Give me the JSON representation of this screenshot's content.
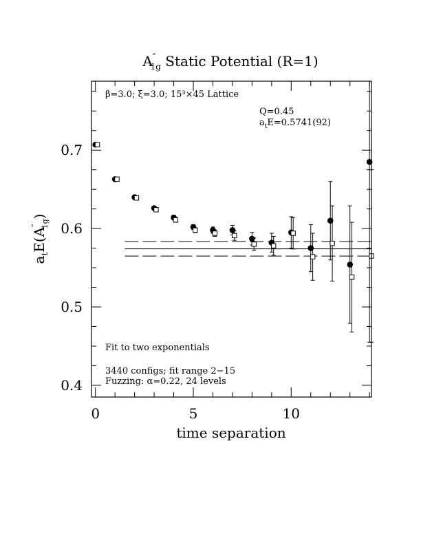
{
  "chart_data": {
    "type": "scatter",
    "title": {
      "main": "A",
      "sup": "″",
      "sub": "1g",
      "rest": " Static Potential (R=1)"
    },
    "xlabel": "time separation",
    "ylabel": {
      "pre": "a",
      "pre_sub": "t",
      "mid": "E(A",
      "sup": "″",
      "sub": "1g",
      "post": ")"
    },
    "xlim": [
      -0.2,
      14.1
    ],
    "ylim": [
      0.385,
      0.788
    ],
    "x_ticks": [
      0,
      5,
      10
    ],
    "x_tick_labels": [
      "0",
      "5",
      "10"
    ],
    "y_ticks": [
      0.4,
      0.5,
      0.6,
      0.7
    ],
    "y_tick_labels": [
      "0.4",
      "0.5",
      "0.6",
      "0.7"
    ],
    "grid": false,
    "annotations": {
      "lattice": "β=3.0; ξ=3.0; 15³×45 Lattice",
      "q_value": "Q=0.45",
      "energy": {
        "pre": "a",
        "sub": "t",
        "post": "E=0.5741(92)"
      },
      "fit_desc": "Fit to two exponentials",
      "configs": "3440 configs; fit range 2−15",
      "fuzzing": "Fuzzing: α=0.22, 24 levels"
    },
    "fit": {
      "value": 0.5741,
      "error": 0.0092,
      "x_range": [
        1.5,
        14.1
      ]
    },
    "series": [
      {
        "marker": "filled-circle",
        "x": [
          0,
          1,
          2,
          3,
          4,
          5,
          6,
          7,
          8,
          9,
          10,
          11,
          12,
          13,
          14
        ],
        "y": [
          0.707,
          0.663,
          0.64,
          0.626,
          0.614,
          0.602,
          0.598,
          0.598,
          0.587,
          0.582,
          0.595,
          0.575,
          0.61,
          0.554,
          0.685
        ],
        "err": [
          0.002,
          0.002,
          0.002,
          0.002,
          0.003,
          0.003,
          0.004,
          0.006,
          0.008,
          0.012,
          0.02,
          0.03,
          0.05,
          0.075,
          0.23
        ]
      },
      {
        "marker": "open-square",
        "x": [
          0.1,
          1.1,
          2.1,
          3.1,
          4.1,
          5.1,
          6.1,
          7.1,
          8.1,
          9.1,
          10.1,
          11.1,
          12.1,
          13.1,
          14.1
        ],
        "y": [
          0.707,
          0.663,
          0.639,
          0.624,
          0.611,
          0.598,
          0.594,
          0.591,
          0.58,
          0.578,
          0.594,
          0.564,
          0.581,
          0.538,
          0.565
        ],
        "err": [
          0.002,
          0.002,
          0.002,
          0.002,
          0.003,
          0.003,
          0.004,
          0.006,
          0.008,
          0.012,
          0.02,
          0.03,
          0.048,
          0.07,
          0.11
        ]
      }
    ]
  }
}
